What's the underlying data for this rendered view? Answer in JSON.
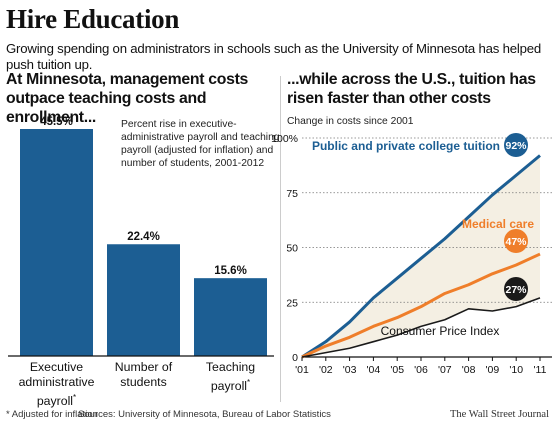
{
  "header": {
    "title": "Hire Education",
    "subtitle": "Growing spending on administrators in schools such as the University of Minnesota has helped push tuition up."
  },
  "left_panel": {
    "title": "At Minnesota, management costs outpace teaching costs and enrollment...",
    "note": "Percent rise in executive-administrative payroll and teaching payroll (adjusted for inflation) and number of students, 2001-2012"
  },
  "right_panel": {
    "title": "...while across the U.S., tuition has risen faster than other costs",
    "note": "Change in costs since 2001"
  },
  "footer": {
    "note": "* Adjusted for inflation",
    "sources": "Sources: University of Minnesota, Bureau of Labor Statistics",
    "brand": "The Wall Street Journal"
  },
  "colors": {
    "bar": "#1c5e93",
    "tuition": "#1c5e93",
    "medical": "#ef7e2a",
    "cpi": "#1a1a1a",
    "fill": "#f4efe3"
  },
  "chart_data": [
    {
      "type": "bar",
      "categories": [
        "Executive administrative payroll",
        "Number of students",
        "Teaching payroll"
      ],
      "category_lines": [
        [
          "Executive",
          "administrative",
          "payroll*"
        ],
        [
          "Number of",
          "students"
        ],
        [
          "Teaching",
          "payroll*"
        ]
      ],
      "values": [
        45.5,
        22.4,
        15.6
      ],
      "value_labels": [
        "45.5%",
        "22.4%",
        "15.6%"
      ],
      "ylim": [
        0,
        50
      ]
    },
    {
      "type": "line",
      "x": [
        2001,
        2002,
        2003,
        2004,
        2005,
        2006,
        2007,
        2008,
        2009,
        2010,
        2011
      ],
      "x_tick_labels": [
        "'01",
        "'02",
        "'03",
        "'04",
        "'05",
        "'06",
        "'07",
        "'08",
        "'09",
        "'10",
        "'11"
      ],
      "y_tick_labels": [
        "0",
        "25",
        "50",
        "75",
        "100%"
      ],
      "y_ticks": [
        0,
        25,
        50,
        75,
        100
      ],
      "ylim": [
        0,
        100
      ],
      "grid": "dotted-horizontal",
      "series": [
        {
          "name": "Public and private college tuition",
          "end_label": "92%",
          "color": "#1c5e93",
          "values": [
            0,
            7,
            16,
            27,
            36,
            45,
            54,
            64,
            74,
            83,
            92
          ]
        },
        {
          "name": "Medical care",
          "end_label": "47%",
          "color": "#ef7e2a",
          "values": [
            0,
            5,
            9,
            14,
            18,
            23,
            29,
            33,
            38,
            42,
            47
          ]
        },
        {
          "name": "Consumer Price Index",
          "end_label": "27%",
          "color": "#1a1a1a",
          "values": [
            0,
            2,
            4,
            7,
            10,
            14,
            17,
            22,
            21,
            23,
            27
          ]
        }
      ]
    }
  ]
}
